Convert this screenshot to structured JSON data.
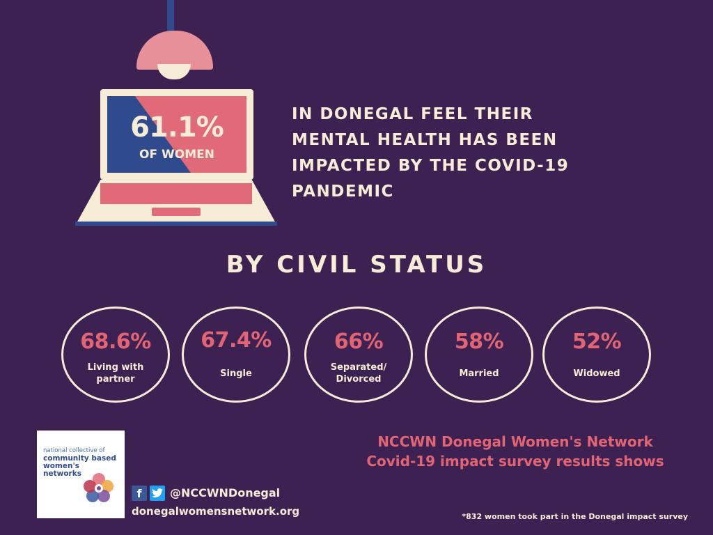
{
  "headline": {
    "percentage": "61.1%",
    "subject": "OF WOMEN",
    "statement": "IN DONEGAL FEEL THEIR\nMENTAL HEALTH HAS BEEN\nIMPACTED BY THE COVID-19\nPANDEMIC"
  },
  "section": {
    "title": "BY CIVIL STATUS"
  },
  "stats": [
    {
      "value": "68.6%",
      "label": "Living with\npartner",
      "percent": 68.6
    },
    {
      "value": "67.4%",
      "label": "Single",
      "percent": 67.4
    },
    {
      "value": "66%",
      "label": "Separated/\nDivorced",
      "percent": 66
    },
    {
      "value": "58%",
      "label": "Married",
      "percent": 58
    },
    {
      "value": "52%",
      "label": "Widowed",
      "percent": 52
    }
  ],
  "logo": {
    "line1": "national collective of",
    "line2": "community based",
    "line3": "women's",
    "line4": "networks"
  },
  "social": {
    "icons": [
      "facebook-icon",
      "twitter-icon"
    ],
    "handle": "@NCCWNDonegal",
    "website": "donegalwomensnetwork.org"
  },
  "network": {
    "title": "NCCWN Donegal Women's Network\nCovid-19 impact survey results shows"
  },
  "footnote": "*832 women took part in the Donegal impact survey",
  "colors": {
    "background": "#3d2152",
    "cream": "#f7ecd6",
    "accent": "#e36574",
    "blue": "#2f4b8e"
  }
}
